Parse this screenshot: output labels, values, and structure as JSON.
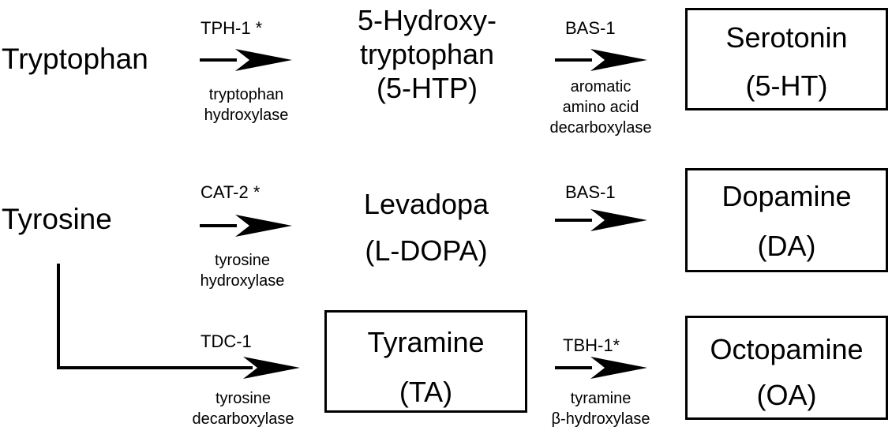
{
  "substrates": {
    "tryptophan": "Tryptophan",
    "tyrosine": "Tyrosine"
  },
  "row1": {
    "enzyme1": "TPH-1 *",
    "enzyme1_desc": [
      "tryptophan",
      "hydroxylase"
    ],
    "intermediate": [
      "5-Hydroxy-",
      "tryptophan",
      "(5-HTP)"
    ],
    "enzyme2": "BAS-1",
    "enzyme2_desc": [
      "aromatic",
      "amino acid",
      "decarboxylase"
    ],
    "product": [
      "Serotonin",
      "(5-HT)"
    ]
  },
  "row2": {
    "enzyme1": "CAT-2 *",
    "enzyme1_desc": [
      "tyrosine",
      "hydroxylase"
    ],
    "intermediate": [
      "Levadopa",
      "(L-DOPA)"
    ],
    "enzyme2": "BAS-1",
    "product": [
      "Dopamine",
      "(DA)"
    ]
  },
  "row3": {
    "enzyme1": "TDC-1",
    "enzyme1_desc": [
      "tyrosine",
      "decarboxylase"
    ],
    "intermediate": [
      "Tyramine",
      "(TA)"
    ],
    "enzyme2": "TBH-1*",
    "enzyme2_desc": [
      "tyramine",
      "β-hydroxylase"
    ],
    "product": [
      "Octopamine",
      "(OA)"
    ]
  }
}
